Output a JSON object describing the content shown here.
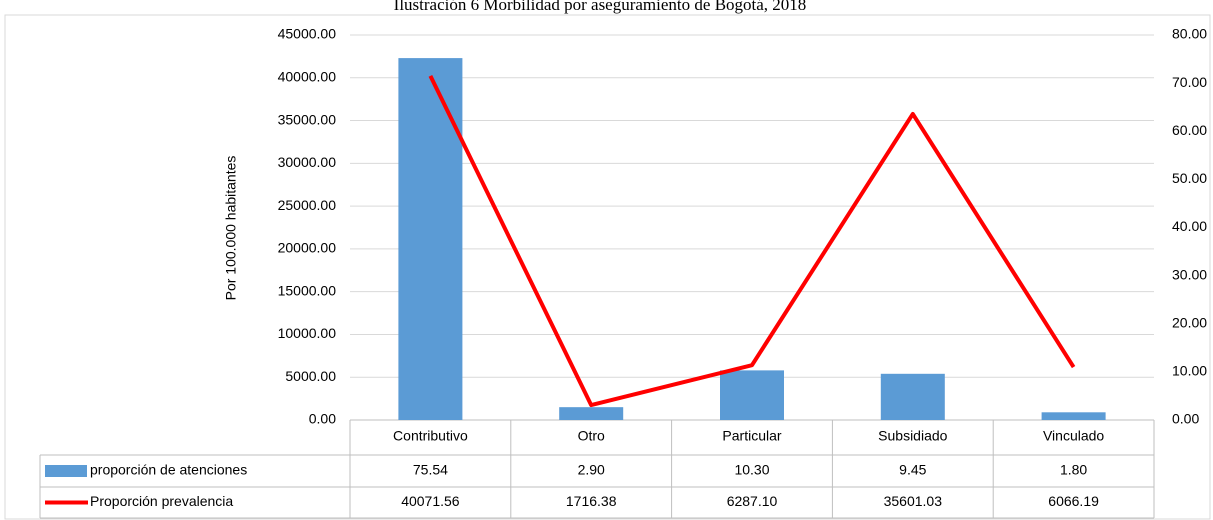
{
  "chart_data": {
    "type": "bar_line",
    "title": "Ilustración 6 Morbilidad por aseguramiento de Bogotá, 2018",
    "ylabel": "Por 100.000 habitantes",
    "categories": [
      "Contributivo",
      "Otro",
      "Particular",
      "Subsidiado",
      "Vinculado"
    ],
    "series": [
      {
        "color": "#5b9bd5",
        "kind": "bar",
        "values": [
          42300,
          1500,
          5800,
          5400,
          900
        ]
      },
      {
        "color": "#ff0000",
        "kind": "line",
        "axis": "y2",
        "values": [
          71.5,
          3.1,
          11.4,
          63.6,
          11.0
        ]
      }
    ],
    "ylim": [
      0,
      45000
    ],
    "yticks": [
      {
        "value": 0,
        "label": "0.00"
      },
      {
        "value": 5000,
        "label": "5000.00"
      },
      {
        "value": 10000,
        "label": "10000.00"
      },
      {
        "value": 15000,
        "label": "15000.00"
      },
      {
        "value": 20000,
        "label": "20000.00"
      },
      {
        "value": 25000,
        "label": "25000.00"
      },
      {
        "value": 30000,
        "label": "30000.00"
      },
      {
        "value": 35000,
        "label": "35000.00"
      },
      {
        "value": 40000,
        "label": "40000.00"
      },
      {
        "value": 45000,
        "label": "45000.00"
      }
    ],
    "y2lim": [
      0,
      80
    ],
    "y2ticks": [
      {
        "value": 0,
        "label": "0.00"
      },
      {
        "value": 10,
        "label": "10.00"
      },
      {
        "value": 20,
        "label": "20.00"
      },
      {
        "value": 30,
        "label": "30.00"
      },
      {
        "value": 40,
        "label": "40.00"
      },
      {
        "value": 50,
        "label": "50.00"
      },
      {
        "value": 60,
        "label": "60.00"
      },
      {
        "value": 70,
        "label": "70.00"
      },
      {
        "value": 80,
        "label": "80.00"
      }
    ],
    "grid": true,
    "data_table": {
      "rows": [
        {
          "name": "proporción de atenciones",
          "values": [
            "75.54",
            "2.90",
            "10.30",
            "9.45",
            "1.80"
          ]
        },
        {
          "name": "Proporción prevalencia",
          "values": [
            "40071.56",
            "1716.38",
            "6287.10",
            "35601.03",
            "6066.19"
          ]
        }
      ]
    }
  }
}
